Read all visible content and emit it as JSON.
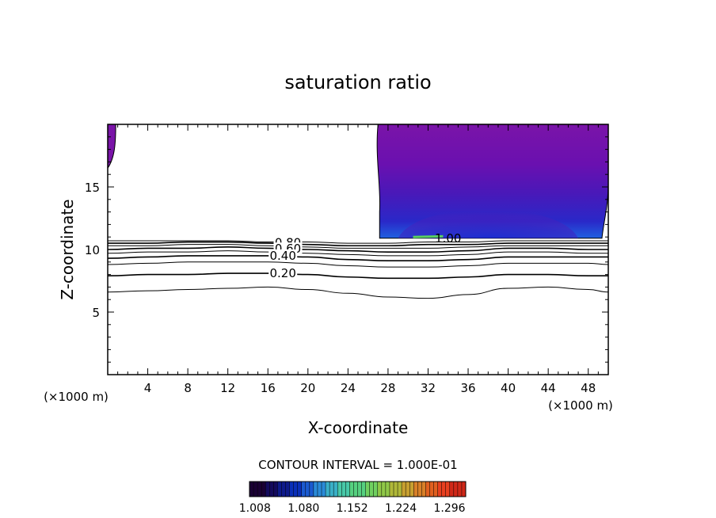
{
  "chart_data": {
    "type": "contour",
    "title": "saturation ratio",
    "xlabel": "X-coordinate",
    "ylabel": "Z-coordinate",
    "x_unit": "(×1000 m)",
    "xlim": [
      0,
      50
    ],
    "ylim": [
      0,
      20
    ],
    "x_ticks": [
      4,
      8,
      12,
      16,
      20,
      24,
      28,
      32,
      36,
      40,
      44,
      48
    ],
    "y_ticks": [
      5,
      10,
      15
    ],
    "contour_interval_text": "CONTOUR INTERVAL = 1.000E-01",
    "contour_labels": [
      "0.80",
      "0.60",
      "0.40",
      "0.20",
      "1.00"
    ],
    "contour_levels": [
      {
        "level": 0.1,
        "z": [
          6.6,
          6.7,
          6.8,
          6.9,
          7.0,
          6.8,
          6.5,
          6.2,
          6.1,
          6.4,
          6.9,
          7.0,
          6.8,
          6.6
        ]
      },
      {
        "level": 0.2,
        "z": [
          7.9,
          8.0,
          8.0,
          8.1,
          8.1,
          8.0,
          7.8,
          7.7,
          7.7,
          7.8,
          8.0,
          8.0,
          7.9,
          7.9
        ]
      },
      {
        "level": 0.3,
        "z": [
          8.8,
          8.9,
          9.0,
          9.0,
          9.0,
          8.9,
          8.7,
          8.6,
          8.6,
          8.7,
          8.9,
          8.9,
          8.9,
          8.8
        ]
      },
      {
        "level": 0.4,
        "z": [
          9.3,
          9.4,
          9.5,
          9.5,
          9.5,
          9.4,
          9.2,
          9.1,
          9.1,
          9.2,
          9.4,
          9.4,
          9.4,
          9.4
        ]
      },
      {
        "level": 0.5,
        "z": [
          9.7,
          9.8,
          9.8,
          9.9,
          9.8,
          9.7,
          9.6,
          9.5,
          9.5,
          9.6,
          9.8,
          9.8,
          9.7,
          9.7
        ]
      },
      {
        "level": 0.6,
        "z": [
          10.0,
          10.1,
          10.1,
          10.2,
          10.1,
          10.0,
          9.9,
          9.8,
          9.8,
          9.9,
          10.1,
          10.1,
          10.0,
          10.0
        ]
      },
      {
        "level": 0.7,
        "z": [
          10.3,
          10.3,
          10.4,
          10.4,
          10.3,
          10.2,
          10.1,
          10.1,
          10.1,
          10.2,
          10.3,
          10.3,
          10.3,
          10.3
        ]
      },
      {
        "level": 0.8,
        "z": [
          10.5,
          10.5,
          10.6,
          10.6,
          10.5,
          10.4,
          10.3,
          10.3,
          10.4,
          10.4,
          10.5,
          10.5,
          10.5,
          10.5
        ]
      },
      {
        "level": 0.9,
        "z": [
          10.7,
          10.7,
          10.7,
          10.7,
          10.6,
          10.6,
          10.5,
          10.5,
          10.6,
          10.6,
          10.7,
          10.7,
          10.7,
          10.7
        ]
      }
    ],
    "contour_x": [
      0,
      4,
      8,
      12,
      16,
      20,
      24,
      28,
      32,
      36,
      40,
      44,
      48,
      50
    ],
    "colorbar": {
      "tick_labels": [
        "1.008",
        "1.080",
        "1.152",
        "1.224",
        "1.296"
      ],
      "range": [
        1.0,
        1.32
      ],
      "colors": [
        "#1a0033",
        "#140a5c",
        "#0e1a8a",
        "#0a2fb8",
        "#1a5ad0",
        "#2a8ad8",
        "#3ab0c8",
        "#48c8a8",
        "#56d080",
        "#70d060",
        "#90c848",
        "#b0b838",
        "#c8a030",
        "#d88028",
        "#e06020",
        "#e84020",
        "#d02818"
      ]
    },
    "supersaturated_region": {
      "x_start": 27.0,
      "x_end": 50.0,
      "z_base": 10.9,
      "z_top": 20.0
    },
    "left_edge_region": {
      "x_start": 0,
      "x_end": 0.8,
      "z_base": 16.5,
      "z_top": 20.0
    }
  }
}
